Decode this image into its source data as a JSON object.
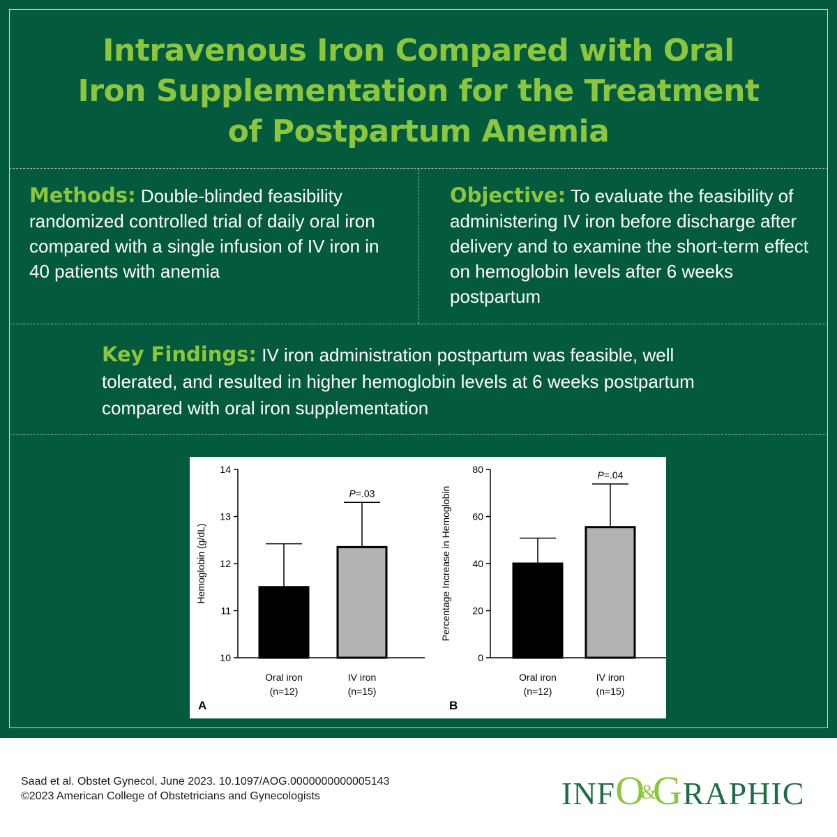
{
  "title": {
    "line1": "Intravenous Iron Compared with Oral",
    "line2": "Iron Supplementation for the Treatment",
    "line3": "of Postpartum Anemia"
  },
  "methods": {
    "label": "Methods:",
    "text": "Double-blinded feasibility randomized controlled trial of daily oral iron compared with a single infusion of IV iron in 40 patients with anemia"
  },
  "objective": {
    "label": "Objective:",
    "text": "To evaluate the feasibility of administering IV iron before discharge after delivery and to examine the short-term effect on hemoglobin levels after 6 weeks postpartum"
  },
  "key_findings": {
    "label": "Key Findings:",
    "text": "IV iron administration postpartum was feasible, well tolerated, and resulted in higher hemoglobin levels at 6 weeks postpartum compared with oral iron supplementation"
  },
  "colors": {
    "background": "#045a3c",
    "accent": "#8cc63f",
    "text": "#ffffff",
    "bar_oral": "#000000",
    "bar_iv": "#b3b3b3"
  },
  "chart_data": [
    {
      "type": "bar",
      "panel_label": "A",
      "categories": [
        "Oral iron",
        "IV iron"
      ],
      "category_notes": [
        "(n=12)",
        "(n=15)"
      ],
      "values": [
        11.5,
        12.35
      ],
      "error_upper": [
        12.42,
        13.3
      ],
      "ylabel": "Hemoglobin (g/dL)",
      "ylim": [
        10,
        14
      ],
      "yticks": [
        10,
        11,
        12,
        13,
        14
      ],
      "annotation": {
        "p_label": "P",
        "p_value": "=.03",
        "over_category": 1
      },
      "grid": false
    },
    {
      "type": "bar",
      "panel_label": "B",
      "categories": [
        "Oral iron",
        "IV iron"
      ],
      "category_notes": [
        "(n=12)",
        "(n=15)"
      ],
      "values": [
        40,
        55.5
      ],
      "error_upper": [
        50.8,
        73.8
      ],
      "ylabel": "Percentage Increase in Hemoglobin",
      "ylim": [
        0,
        80
      ],
      "yticks": [
        0,
        20,
        40,
        60,
        80
      ],
      "annotation": {
        "p_label": "P",
        "p_value": "=.04",
        "over_category": 1
      },
      "grid": false
    }
  ],
  "footer": {
    "citation": "Saad et al. Obstet Gynecol, June 2023. 10.1097/AOG.0000000000005143",
    "copyright": "©2023 American College of Obstetricians and Gynecologists"
  },
  "logo": {
    "part1": "INF",
    "part2": "O",
    "amp": "&",
    "part3": "G",
    "part4": "RAPHIC"
  }
}
